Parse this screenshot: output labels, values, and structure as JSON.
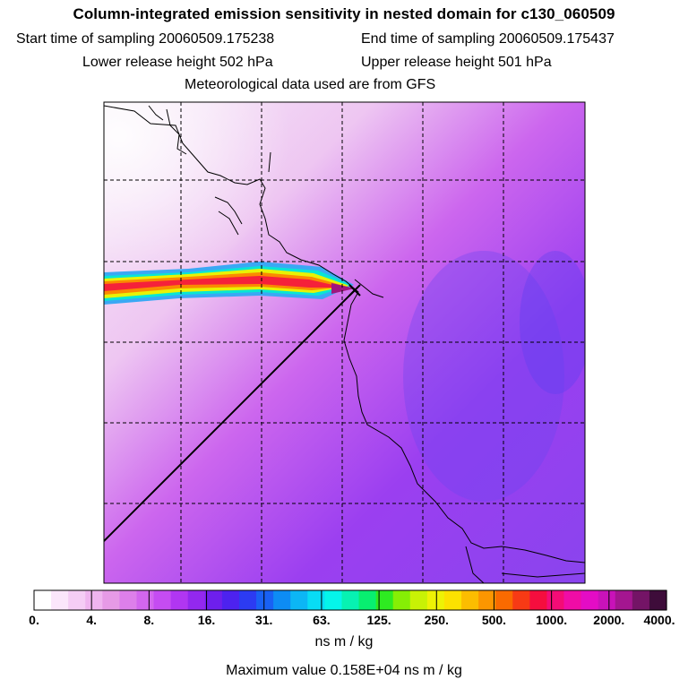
{
  "header": {
    "title": "Column-integrated emission sensitivity in nested domain for c130_060509",
    "start_label": "Start time of sampling 20060509.175238",
    "end_label": "End time of sampling 20060509.175437",
    "lower_label": "Lower release height  502 hPa",
    "upper_label": "Upper release height  501 hPa",
    "met_label": "Meteorological data used are from GFS"
  },
  "colorbar": {
    "colors": [
      "#ffffff",
      "#fbe6fb",
      "#f5cdf5",
      "#efb4ef",
      "#e69ae6",
      "#dd7fea",
      "#d266ee",
      "#c54cf2",
      "#b136f2",
      "#9328ef",
      "#6e1fec",
      "#4d22ef",
      "#2c3bf2",
      "#1961f4",
      "#0d8cf4",
      "#0cb6f5",
      "#08dcf5",
      "#05f5ea",
      "#07f2b2",
      "#08ef70",
      "#2eeb21",
      "#86ef05",
      "#c8f205",
      "#eef205",
      "#fce100",
      "#fcbd00",
      "#fc9600",
      "#fa6a00",
      "#f73a15",
      "#f50e3e",
      "#f40c76",
      "#f00ca6",
      "#e40cc5",
      "#c912b9",
      "#a41690",
      "#741466",
      "#3e0c3a"
    ],
    "labels": [
      "0.",
      "4.",
      "8.",
      "16.",
      "31.",
      "63.",
      "125.",
      "250.",
      "500.",
      "1000.",
      "2000.",
      "4000."
    ],
    "unit": "ns m / kg"
  },
  "max_value_label": "Maximum value  0.158E+04 ns m / kg"
}
